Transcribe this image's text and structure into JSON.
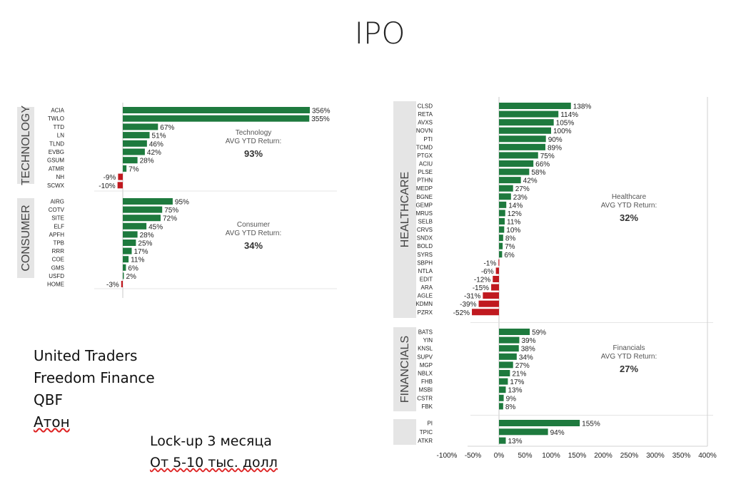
{
  "title": "IPO",
  "colors": {
    "positive": "#1e7a3e",
    "negative": "#c0191f",
    "panel": "#e5e5e5"
  },
  "chart_data": [
    {
      "type": "bar",
      "orientation": "horizontal",
      "xlim": [
        -30,
        400
      ],
      "groups": [
        {
          "sector": "TECHNOLOGY",
          "avg_label": "Technology",
          "avg_caption": "AVG YTD Return:",
          "avg_value": "93%",
          "categories": [
            "ACIA",
            "TWLO",
            "TTD",
            "LN",
            "TLND",
            "EVBG",
            "GSUM",
            "ATMR",
            "NH",
            "SCWX"
          ],
          "values": [
            356,
            355,
            67,
            51,
            46,
            42,
            28,
            7,
            -9,
            -10
          ]
        },
        {
          "sector": "CONSUMER",
          "avg_label": "Consumer",
          "avg_caption": "AVG YTD Return:",
          "avg_value": "34%",
          "categories": [
            "AIRG",
            "COTV",
            "SITE",
            "ELF",
            "APFH",
            "TPB",
            "RRR",
            "COE",
            "GMS",
            "USFD",
            "HOME"
          ],
          "values": [
            95,
            75,
            72,
            45,
            28,
            25,
            17,
            11,
            6,
            2,
            -3
          ]
        }
      ]
    },
    {
      "type": "bar",
      "orientation": "horizontal",
      "xlim": [
        -100,
        400
      ],
      "xticks": [
        -100,
        -50,
        0,
        50,
        100,
        150,
        200,
        250,
        300,
        350,
        400
      ],
      "xtick_labels": [
        "-100%",
        "-50%",
        "0%",
        "50%",
        "100%",
        "150%",
        "200%",
        "250%",
        "300%",
        "350%",
        "400%"
      ],
      "groups": [
        {
          "sector": "HEALTHCARE",
          "avg_label": "Healthcare",
          "avg_caption": "AVG YTD Return:",
          "avg_value": "32%",
          "categories": [
            "CLSD",
            "RETA",
            "AVXS",
            "NOVN",
            "PTI",
            "TCMD",
            "PTGX",
            "ACIU",
            "PLSE",
            "PTHN",
            "MEDP",
            "BGNE",
            "GEMP",
            "MRUS",
            "SELB",
            "CRVS",
            "SNDX",
            "BOLD",
            "SYRS",
            "SBPH",
            "NTLA",
            "EDIT",
            "ARA",
            "AGLE",
            "KDMN",
            "PZRX"
          ],
          "values": [
            138,
            114,
            105,
            100,
            90,
            89,
            75,
            66,
            58,
            42,
            27,
            23,
            14,
            12,
            11,
            10,
            8,
            7,
            6,
            -1,
            -6,
            -12,
            -15,
            -31,
            -39,
            -52
          ]
        },
        {
          "sector": "FINANCIALS",
          "avg_label": "Financials",
          "avg_caption": "AVG YTD Return:",
          "avg_value": "27%",
          "categories": [
            "BATS",
            "YIN",
            "KNSL",
            "SUPV",
            "MGP",
            "NBLX",
            "FHB",
            "MSBI",
            "CSTR",
            "FBK"
          ],
          "values": [
            59,
            39,
            38,
            34,
            27,
            21,
            17,
            13,
            9,
            8
          ]
        },
        {
          "sector": "",
          "avg_label": "",
          "avg_caption": "",
          "avg_value": "",
          "categories": [
            "PI",
            "TPIC",
            "ATKR"
          ],
          "values": [
            155,
            94,
            13
          ]
        }
      ]
    }
  ],
  "brokers": [
    "United Traders",
    "Freedom Finance",
    "QBF",
    "Атон"
  ],
  "notes": [
    "Lock-up 3 месяца",
    "От 5-10 тыс. долл"
  ]
}
